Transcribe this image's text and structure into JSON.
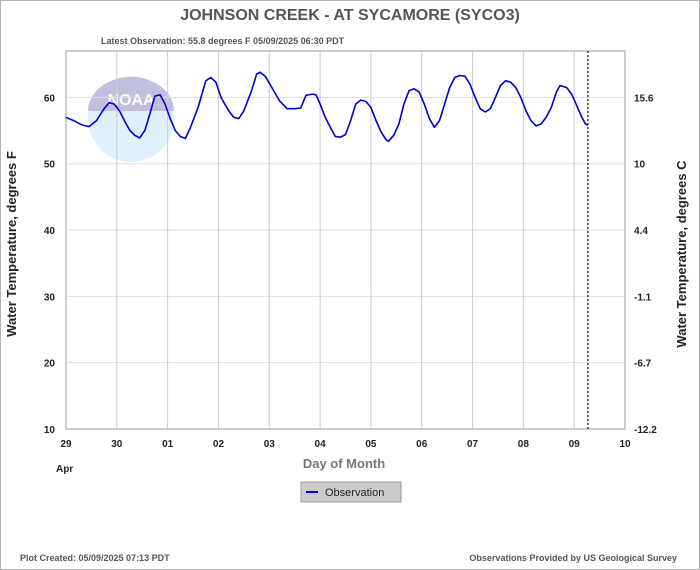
{
  "title": "JOHNSON CREEK - AT SYCAMORE  (SYCO3)",
  "subtitle": "Latest Observation: 55.8 degrees F 05/09/2025 06:30 PDT",
  "logo_text": "NOAA",
  "footer_left": "Plot Created: 05/09/2025 07:13 PDT",
  "footer_right": "Observations Provided by US Geological Survey",
  "legend": {
    "label": "Observation",
    "color": "#0000cc"
  },
  "chart_data": {
    "type": "line",
    "xlabel": "Day of Month",
    "ylabel_left": "Water Temperature, degrees F",
    "ylabel_right": "Water Temperature, degrees C",
    "x_tick_labels": [
      "29",
      "30",
      "01",
      "02",
      "03",
      "04",
      "05",
      "06",
      "07",
      "08",
      "09",
      "10"
    ],
    "x_month_label": "Apr",
    "xlim_days": [
      0,
      11
    ],
    "ylim": [
      10,
      67
    ],
    "y_ticks_left": [
      10,
      20,
      30,
      40,
      50,
      60
    ],
    "y_ticks_right": [
      {
        "f": 10,
        "label": "-12.2"
      },
      {
        "f": 20,
        "label": "-6.7"
      },
      {
        "f": 30,
        "label": "-1.1"
      },
      {
        "f": 40,
        "label": "4.4"
      },
      {
        "f": 50,
        "label": "10"
      },
      {
        "f": 60,
        "label": "15.6"
      }
    ],
    "observation_marker_day": 10.27,
    "grid": true,
    "series": [
      {
        "name": "Observation",
        "color": "#0000cc",
        "points": [
          [
            0.0,
            57.0
          ],
          [
            0.15,
            56.5
          ],
          [
            0.3,
            55.9
          ],
          [
            0.45,
            55.6
          ],
          [
            0.6,
            56.5
          ],
          [
            0.75,
            58.3
          ],
          [
            0.85,
            59.2
          ],
          [
            0.95,
            59.0
          ],
          [
            1.05,
            58.0
          ],
          [
            1.15,
            56.5
          ],
          [
            1.25,
            55.1
          ],
          [
            1.35,
            54.3
          ],
          [
            1.45,
            53.9
          ],
          [
            1.55,
            55.0
          ],
          [
            1.65,
            57.5
          ],
          [
            1.75,
            60.2
          ],
          [
            1.85,
            60.4
          ],
          [
            1.95,
            59.0
          ],
          [
            2.05,
            56.8
          ],
          [
            2.15,
            55.0
          ],
          [
            2.25,
            54.1
          ],
          [
            2.35,
            53.8
          ],
          [
            2.45,
            55.5
          ],
          [
            2.6,
            58.5
          ],
          [
            2.75,
            62.5
          ],
          [
            2.85,
            63.0
          ],
          [
            2.95,
            62.3
          ],
          [
            3.05,
            60.0
          ],
          [
            3.2,
            58.0
          ],
          [
            3.3,
            57.0
          ],
          [
            3.4,
            56.8
          ],
          [
            3.5,
            58.0
          ],
          [
            3.65,
            61.0
          ],
          [
            3.75,
            63.5
          ],
          [
            3.82,
            63.8
          ],
          [
            3.92,
            63.2
          ],
          [
            4.05,
            61.5
          ],
          [
            4.2,
            59.5
          ],
          [
            4.35,
            58.3
          ],
          [
            4.5,
            58.3
          ],
          [
            4.62,
            58.4
          ],
          [
            4.72,
            60.3
          ],
          [
            4.85,
            60.5
          ],
          [
            4.92,
            60.4
          ],
          [
            5.0,
            59.0
          ],
          [
            5.1,
            57.0
          ],
          [
            5.2,
            55.5
          ],
          [
            5.3,
            54.1
          ],
          [
            5.4,
            54.0
          ],
          [
            5.5,
            54.4
          ],
          [
            5.6,
            56.5
          ],
          [
            5.7,
            59.0
          ],
          [
            5.8,
            59.6
          ],
          [
            5.9,
            59.4
          ],
          [
            6.0,
            58.5
          ],
          [
            6.1,
            56.5
          ],
          [
            6.2,
            54.8
          ],
          [
            6.3,
            53.6
          ],
          [
            6.35,
            53.4
          ],
          [
            6.45,
            54.3
          ],
          [
            6.55,
            56.0
          ],
          [
            6.65,
            59.0
          ],
          [
            6.75,
            61.0
          ],
          [
            6.85,
            61.3
          ],
          [
            6.95,
            60.8
          ],
          [
            7.05,
            59.0
          ],
          [
            7.15,
            56.8
          ],
          [
            7.25,
            55.5
          ],
          [
            7.35,
            56.5
          ],
          [
            7.45,
            59.0
          ],
          [
            7.55,
            61.5
          ],
          [
            7.65,
            63.0
          ],
          [
            7.75,
            63.3
          ],
          [
            7.85,
            63.2
          ],
          [
            7.95,
            62.0
          ],
          [
            8.05,
            60.0
          ],
          [
            8.15,
            58.3
          ],
          [
            8.25,
            57.8
          ],
          [
            8.35,
            58.3
          ],
          [
            8.45,
            60.0
          ],
          [
            8.55,
            61.8
          ],
          [
            8.65,
            62.5
          ],
          [
            8.75,
            62.3
          ],
          [
            8.85,
            61.5
          ],
          [
            8.95,
            60.0
          ],
          [
            9.05,
            58.0
          ],
          [
            9.15,
            56.5
          ],
          [
            9.25,
            55.7
          ],
          [
            9.35,
            56.0
          ],
          [
            9.45,
            57.0
          ],
          [
            9.55,
            58.5
          ],
          [
            9.65,
            60.8
          ],
          [
            9.72,
            61.8
          ],
          [
            9.85,
            61.5
          ],
          [
            9.95,
            60.5
          ],
          [
            10.05,
            58.8
          ],
          [
            10.15,
            57.0
          ],
          [
            10.22,
            56.0
          ],
          [
            10.27,
            55.8
          ]
        ]
      }
    ]
  }
}
